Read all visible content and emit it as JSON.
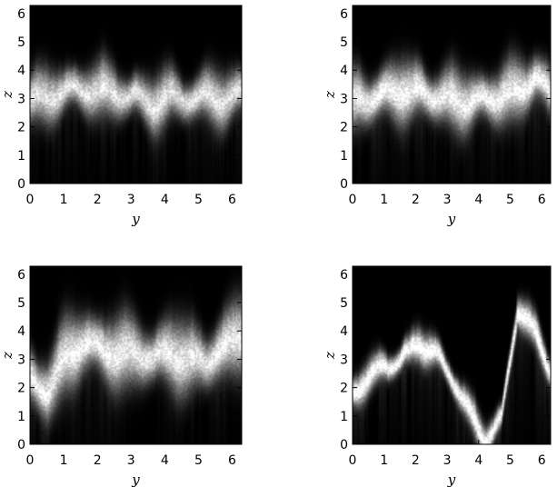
{
  "chart_data": [
    {
      "type": "heatmap",
      "title": "",
      "xlabel": "y",
      "ylabel": "z",
      "xlim": [
        0,
        6.283
      ],
      "ylim": [
        0,
        6.283
      ],
      "xticks": [
        "0",
        "1",
        "2",
        "3",
        "4",
        "5",
        "6"
      ],
      "yticks": [
        "0",
        "1",
        "2",
        "3",
        "4",
        "5",
        "6"
      ],
      "colormap": "grayscale",
      "band_center": [
        3.0,
        3.1,
        3.3,
        3.35,
        3.3,
        3.2,
        3.1,
        2.8,
        3.15,
        3.0,
        3.1,
        3.0,
        3.2
      ],
      "band_halfwidth": 0.9,
      "band_peak": 0.85
    },
    {
      "type": "heatmap",
      "title": "",
      "xlabel": "y",
      "ylabel": "z",
      "xlim": [
        0,
        6.283
      ],
      "ylim": [
        0,
        6.283
      ],
      "xticks": [
        "0",
        "1",
        "2",
        "3",
        "4",
        "5",
        "6"
      ],
      "yticks": [
        "0",
        "1",
        "2",
        "3",
        "4",
        "5",
        "6"
      ],
      "colormap": "grayscale",
      "band_center": [
        2.9,
        3.0,
        3.2,
        3.3,
        3.25,
        3.1,
        3.0,
        2.9,
        3.0,
        3.1,
        3.3,
        3.7,
        3.3
      ],
      "band_halfwidth": 1.0,
      "band_peak": 0.92
    },
    {
      "type": "heatmap",
      "title": "",
      "xlabel": "y",
      "ylabel": "z",
      "xlim": [
        0,
        6.283
      ],
      "ylim": [
        0,
        6.283
      ],
      "xticks": [
        "0",
        "1",
        "2",
        "3",
        "4",
        "5",
        "6"
      ],
      "yticks": [
        "0",
        "1",
        "2",
        "3",
        "4",
        "5",
        "6"
      ],
      "colormap": "grayscale",
      "band_center": [
        2.3,
        1.9,
        3.1,
        3.6,
        3.4,
        3.2,
        3.3,
        3.1,
        3.3,
        3.0,
        3.0,
        3.4,
        4.0
      ],
      "band_halfwidth": 1.2,
      "band_peak": 0.9
    },
    {
      "type": "heatmap",
      "title": "",
      "xlabel": "y",
      "ylabel": "z",
      "xlim": [
        0,
        6.283
      ],
      "ylim": [
        0,
        6.283
      ],
      "xticks": [
        "0",
        "1",
        "2",
        "3",
        "4",
        "5",
        "6"
      ],
      "yticks": [
        "0",
        "1",
        "2",
        "3",
        "4",
        "5",
        "6"
      ],
      "colormap": "grayscale",
      "band_center": [
        1.8,
        2.4,
        2.8,
        3.0,
        3.6,
        3.2,
        2.4,
        1.2,
        0.2,
        0.8,
        4.8,
        4.0,
        2.6
      ],
      "band_halfwidth": 0.55,
      "band_peak": 1.0
    }
  ]
}
